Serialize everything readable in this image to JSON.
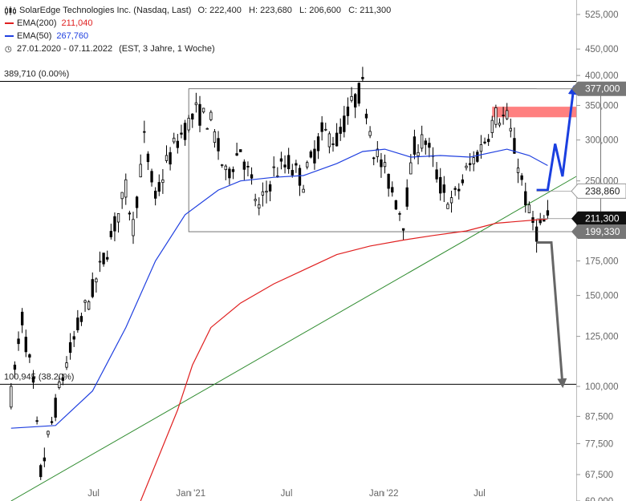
{
  "header": {
    "title": "SolarEdge Technologies Inc. (Nasdaq, Last)",
    "ohlc": "O: 222,400   H: 223,680   L: 206,600   C: 211,300",
    "ema200_label": "EMA(200)",
    "ema200_value": "211,040",
    "ema50_label": "EMA(50)",
    "ema50_value": "267,760",
    "period": "27.01.2020 - 07.11.2022",
    "period_info": "(EST, 3 Jahre, 1 Woche)"
  },
  "colors": {
    "ema200": "#e02020",
    "ema50": "#2040e0",
    "trendline": "#2e8b2e",
    "arrow_up": "#1a3fe0",
    "arrow_down": "#666666",
    "resistance_zone": "#ff8080",
    "candle_up": "#ffffff",
    "candle_down": "#000000"
  },
  "chart_data": {
    "type": "candlestick",
    "y_scale": "log",
    "ylim": [
      60000,
      560000
    ],
    "x_range": [
      "2020-01-27",
      "2022-11-07"
    ],
    "y_ticks": [
      {
        "value": 525000,
        "label": "525,000"
      },
      {
        "value": 450000,
        "label": "450,000"
      },
      {
        "value": 400000,
        "label": "400,000"
      },
      {
        "value": 350000,
        "label": "350,000"
      },
      {
        "value": 300000,
        "label": "300,000"
      },
      {
        "value": 250000,
        "label": "250,000"
      },
      {
        "value": 175000,
        "label": "175,000"
      },
      {
        "value": 150000,
        "label": "150,000"
      },
      {
        "value": 125000,
        "label": "125,000"
      },
      {
        "value": 100000,
        "label": "100,000"
      },
      {
        "value": 87500,
        "label": "87,500"
      },
      {
        "value": 77500,
        "label": "77,500"
      },
      {
        "value": 67500,
        "label": "67,500"
      },
      {
        "value": 60000,
        "label": "60,000"
      }
    ],
    "x_ticks": [
      {
        "date": "2020-07-01",
        "label": "Jul"
      },
      {
        "date": "2021-01-01",
        "label": "Jan '21"
      },
      {
        "date": "2021-07-01",
        "label": "Jul"
      },
      {
        "date": "2022-01-01",
        "label": "Jan '22"
      },
      {
        "date": "2022-07-01",
        "label": "Jul"
      }
    ],
    "price_path": [
      [
        "2020-01-27",
        96000
      ],
      [
        "2020-02-17",
        135000
      ],
      [
        "2020-03-09",
        100000
      ],
      [
        "2020-03-23",
        68000
      ],
      [
        "2020-04-13",
        85000
      ],
      [
        "2020-05-04",
        105000
      ],
      [
        "2020-06-01",
        130000
      ],
      [
        "2020-07-06",
        160000
      ],
      [
        "2020-08-03",
        195000
      ],
      [
        "2020-08-31",
        240000
      ],
      [
        "2020-09-14",
        205000
      ],
      [
        "2020-10-05",
        300000
      ],
      [
        "2020-10-26",
        230000
      ],
      [
        "2020-11-16",
        270000
      ],
      [
        "2020-12-07",
        300000
      ],
      [
        "2021-01-11",
        340000
      ],
      [
        "2021-02-08",
        325000
      ],
      [
        "2021-03-08",
        255000
      ],
      [
        "2021-04-05",
        290000
      ],
      [
        "2021-05-10",
        220000
      ],
      [
        "2021-06-07",
        260000
      ],
      [
        "2021-07-05",
        270000
      ],
      [
        "2021-08-02",
        250000
      ],
      [
        "2021-09-06",
        310000
      ],
      [
        "2021-10-04",
        300000
      ],
      [
        "2021-11-01",
        350000
      ],
      [
        "2021-11-22",
        380000
      ],
      [
        "2021-12-13",
        290000
      ],
      [
        "2022-01-10",
        250000
      ],
      [
        "2022-02-07",
        210000
      ],
      [
        "2022-02-28",
        290000
      ],
      [
        "2022-03-21",
        300000
      ],
      [
        "2022-04-18",
        245000
      ],
      [
        "2022-05-09",
        225000
      ],
      [
        "2022-06-06",
        260000
      ],
      [
        "2022-07-04",
        290000
      ],
      [
        "2022-08-01",
        335000
      ],
      [
        "2022-08-22",
        330000
      ],
      [
        "2022-09-12",
        270000
      ],
      [
        "2022-10-03",
        215000
      ],
      [
        "2022-10-17",
        200000
      ],
      [
        "2022-11-07",
        211300
      ]
    ],
    "ema50": [
      [
        "2020-01-27",
        83000
      ],
      [
        "2020-04-20",
        84000
      ],
      [
        "2020-06-29",
        98000
      ],
      [
        "2020-08-31",
        130000
      ],
      [
        "2020-10-26",
        175000
      ],
      [
        "2020-12-21",
        215000
      ],
      [
        "2021-02-22",
        240000
      ],
      [
        "2021-04-05",
        250000
      ],
      [
        "2021-06-07",
        254000
      ],
      [
        "2021-08-02",
        256000
      ],
      [
        "2021-10-04",
        270000
      ],
      [
        "2021-11-22",
        285000
      ],
      [
        "2022-01-03",
        288000
      ],
      [
        "2022-02-21",
        278000
      ],
      [
        "2022-04-18",
        280000
      ],
      [
        "2022-06-13",
        278000
      ],
      [
        "2022-08-22",
        288000
      ],
      [
        "2022-10-03",
        280000
      ],
      [
        "2022-11-07",
        267760
      ]
    ],
    "ema200": [
      [
        "2020-09-28",
        60000
      ],
      [
        "2020-12-07",
        90000
      ],
      [
        "2021-01-04",
        110000
      ],
      [
        "2021-02-08",
        130000
      ],
      [
        "2021-04-05",
        145000
      ],
      [
        "2021-06-07",
        158000
      ],
      [
        "2021-08-02",
        168000
      ],
      [
        "2021-10-04",
        180000
      ],
      [
        "2021-12-06",
        187000
      ],
      [
        "2022-02-07",
        192000
      ],
      [
        "2022-04-04",
        196000
      ],
      [
        "2022-06-06",
        200000
      ],
      [
        "2022-08-01",
        207000
      ],
      [
        "2022-11-07",
        211040
      ]
    ],
    "trendline": {
      "from": [
        "2020-01-27",
        60000
      ],
      "to": [
        "2022-12-31",
        255000
      ]
    },
    "levels": [
      {
        "value": 389710,
        "label": "389,710 (0.00%)"
      },
      {
        "value": 100945,
        "label": "100,945 (38.20%)"
      }
    ],
    "rectangle": {
      "from": "2020-12-28",
      "to": "2022-11-07",
      "top": 377000,
      "bottom": 199330
    },
    "resistance_zone": {
      "from": "2022-07-25",
      "to": "2022-12-31",
      "top": 348000,
      "bottom": 332000
    },
    "price_tags": [
      {
        "value": 377000,
        "label": "377,000",
        "style": "gray"
      },
      {
        "value": 238860,
        "label": "238,860",
        "style": "light"
      },
      {
        "value": 211300,
        "label": "211,300",
        "style": "dark"
      },
      {
        "value": 199330,
        "label": "199,330",
        "style": "gray"
      }
    ],
    "scenario_up": [
      [
        "2022-10-17",
        240000
      ],
      [
        "2022-11-07",
        240000
      ],
      [
        "2022-11-21",
        295000
      ],
      [
        "2022-12-05",
        255000
      ],
      [
        "2022-12-26",
        377000
      ]
    ],
    "scenario_down": [
      [
        "2022-10-17",
        190000
      ],
      [
        "2022-11-14",
        190000
      ],
      [
        "2022-12-05",
        100945
      ]
    ]
  }
}
